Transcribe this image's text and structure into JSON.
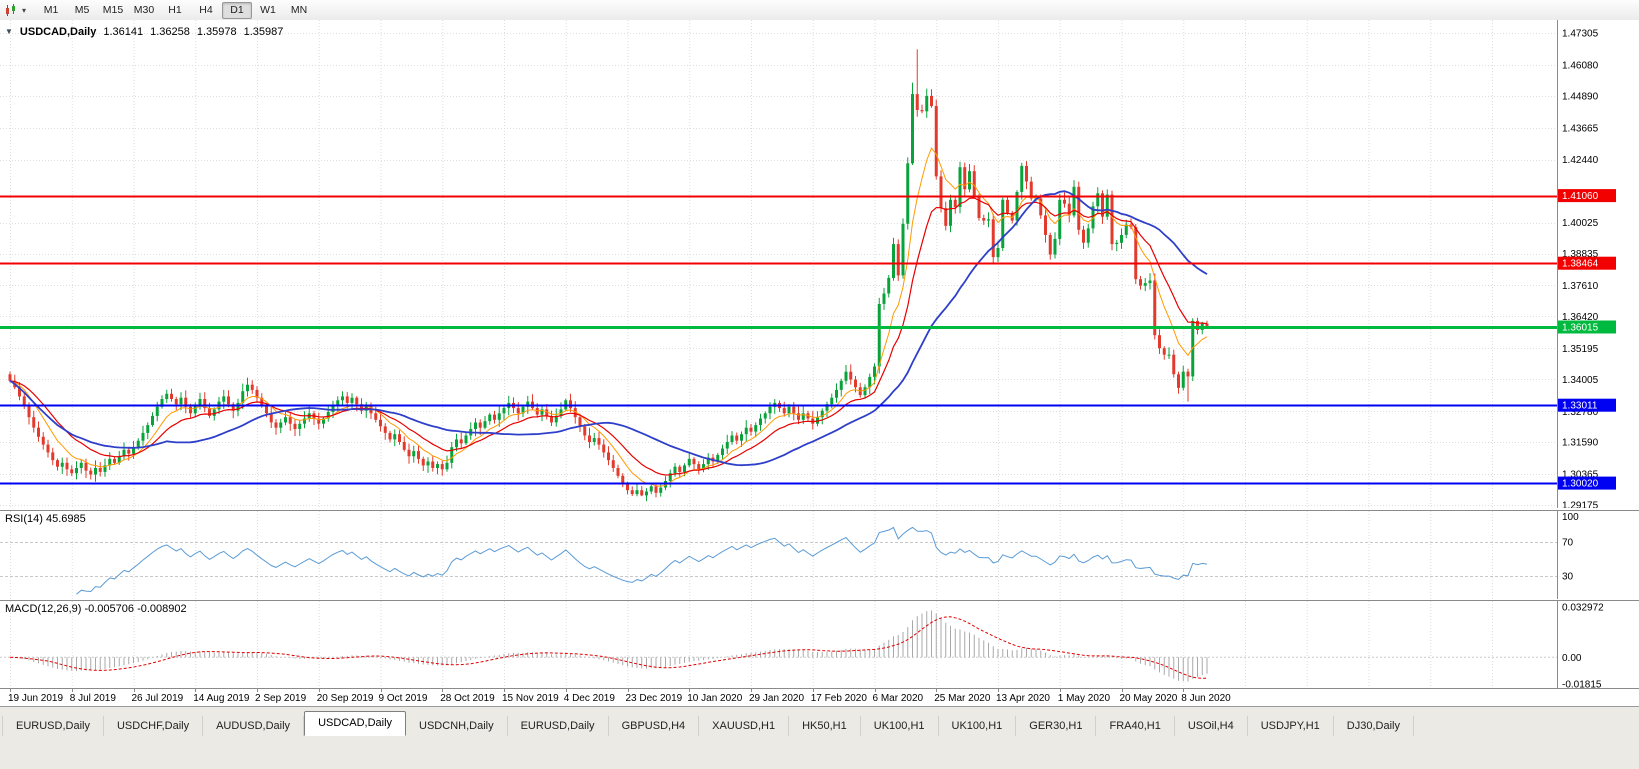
{
  "toolbar": {
    "timeframes": [
      {
        "label": "M1",
        "active": false
      },
      {
        "label": "M5",
        "active": false
      },
      {
        "label": "M15",
        "active": false
      },
      {
        "label": "M30",
        "active": false
      },
      {
        "label": "H1",
        "active": false
      },
      {
        "label": "H4",
        "active": false
      },
      {
        "label": "D1",
        "active": true
      },
      {
        "label": "W1",
        "active": false
      },
      {
        "label": "MN",
        "active": false
      }
    ]
  },
  "chart_title": {
    "symbol": "USDCAD,Daily",
    "open": "1.36141",
    "high": "1.36258",
    "low": "1.35978",
    "close": "1.35987"
  },
  "panes": {
    "rsi_label": "RSI(14) 45.6985",
    "macd_label": "MACD(12,26,9) -0.005706 -0.008902"
  },
  "chart_data": {
    "type": "candlestick",
    "symbol": "USDCAD",
    "timeframe": "Daily",
    "x_tick_labels": [
      "19 Jun 2019",
      "8 Jul 2019",
      "26 Jul 2019",
      "14 Aug 2019",
      "2 Sep 2019",
      "20 Sep 2019",
      "9 Oct 2019",
      "28 Oct 2019",
      "15 Nov 2019",
      "4 Dec 2019",
      "23 Dec 2019",
      "10 Jan 2020",
      "29 Jan 2020",
      "17 Feb 2020",
      "6 Mar 2020",
      "25 Mar 2020",
      "13 Apr 2020",
      "1 May 2020",
      "20 May 2020",
      "8 Jun 2020"
    ],
    "x_tick_indices": [
      0,
      13,
      26,
      39,
      52,
      65,
      78,
      91,
      104,
      117,
      130,
      143,
      156,
      169,
      182,
      195,
      208,
      221,
      234,
      247
    ],
    "price_ticks": [
      "1.47305",
      "1.46080",
      "1.44890",
      "1.43665",
      "1.42440",
      "1.40025",
      "1.38835",
      "1.37610",
      "1.36420",
      "1.35195",
      "1.34005",
      "1.32780",
      "1.31590",
      "1.30365",
      "1.29175"
    ],
    "y_top_price": 1.47305,
    "price_per_pixel": 0.000384,
    "first_open": 1.342,
    "closes": [
      1.3395,
      1.337,
      1.3335,
      1.33,
      1.3255,
      1.3215,
      1.318,
      1.315,
      1.312,
      1.309,
      1.3065,
      1.308,
      1.3055,
      1.304,
      1.306,
      1.308,
      1.305,
      1.3035,
      1.306,
      1.3045,
      1.307,
      1.3095,
      1.308,
      1.3105,
      1.313,
      1.3115,
      1.314,
      1.3165,
      1.3195,
      1.3225,
      1.326,
      1.3295,
      1.3325,
      1.3345,
      1.3325,
      1.3305,
      1.333,
      1.3295,
      1.327,
      1.33,
      1.3325,
      1.329,
      1.326,
      1.3285,
      1.3315,
      1.3335,
      1.3305,
      1.328,
      1.331,
      1.3355,
      1.338,
      1.336,
      1.333,
      1.33,
      1.327,
      1.3235,
      1.3215,
      1.3235,
      1.3255,
      1.323,
      1.321,
      1.323,
      1.325,
      1.327,
      1.325,
      1.323,
      1.325,
      1.3275,
      1.33,
      1.332,
      1.3335,
      1.331,
      1.333,
      1.3305,
      1.328,
      1.33,
      1.327,
      1.3245,
      1.322,
      1.3195,
      1.317,
      1.319,
      1.316,
      1.313,
      1.3105,
      1.3125,
      1.3095,
      1.307,
      1.3085,
      1.306,
      1.3075,
      1.3055,
      1.308,
      1.314,
      1.317,
      1.3155,
      1.3185,
      1.321,
      1.3235,
      1.3215,
      1.324,
      1.3265,
      1.3245,
      1.327,
      1.329,
      1.331,
      1.329,
      1.327,
      1.3295,
      1.3315,
      1.329,
      1.3265,
      1.3285,
      1.326,
      1.3235,
      1.326,
      1.3285,
      1.332,
      1.329,
      1.3255,
      1.322,
      1.3185,
      1.316,
      1.3175,
      1.315,
      1.312,
      1.309,
      1.306,
      1.303,
      1.3,
      1.2975,
      1.296,
      1.2975,
      1.2955,
      1.297,
      1.299,
      1.2965,
      1.2985,
      1.301,
      1.304,
      1.3065,
      1.3045,
      1.307,
      1.3095,
      1.3075,
      1.3055,
      1.3075,
      1.31,
      1.3085,
      1.311,
      1.3135,
      1.316,
      1.3185,
      1.3165,
      1.319,
      1.3215,
      1.32,
      1.3225,
      1.325,
      1.327,
      1.3295,
      1.331,
      1.329,
      1.327,
      1.3295,
      1.327,
      1.3245,
      1.327,
      1.325,
      1.323,
      1.3255,
      1.328,
      1.3305,
      1.333,
      1.336,
      1.3395,
      1.343,
      1.34,
      1.337,
      1.334,
      1.337,
      1.341,
      1.345,
      1.369,
      1.373,
      1.379,
      1.392,
      1.38,
      1.3998,
      1.423,
      1.4496,
      1.4435,
      1.443,
      1.4489,
      1.445,
      1.418,
      1.4058,
      1.399,
      1.409,
      1.4062,
      1.4215,
      1.413,
      1.42,
      1.4105,
      1.402,
      1.401,
      1.4015,
      1.387,
      1.3905,
      1.409,
      1.404,
      1.401,
      1.412,
      1.422,
      1.416,
      1.4095,
      1.4095,
      1.403,
      1.3955,
      1.388,
      1.394,
      1.409,
      1.4075,
      1.403,
      1.414,
      1.3975,
      1.3925,
      1.398,
      1.4065,
      1.4115,
      1.4025,
      1.411,
      1.392,
      1.3925,
      1.3955,
      1.3995,
      1.3985,
      1.3785,
      1.376,
      1.377,
      1.378,
      1.357,
      1.352,
      1.3495,
      1.3495,
      1.342,
      1.3368,
      1.343,
      1.3412,
      1.3625,
      1.359,
      1.36141,
      1.35987
    ],
    "wick_base": 0.0032,
    "wick_overrides": {
      "17": {
        "low": 1.3016
      },
      "133": {
        "low": 1.2952
      },
      "190": {
        "high": 1.454
      },
      "191": {
        "high": 1.4668
      },
      "248": {
        "low": 1.3315
      },
      "252": {
        "high": 1.36258,
        "low": 1.35978
      }
    },
    "hlines": [
      {
        "price": 1.4106,
        "label": "1.41060",
        "color": "#f20000",
        "width": 2
      },
      {
        "price": 1.38464,
        "label": "1.38464",
        "color": "#f20000",
        "width": 2
      },
      {
        "price": 1.36015,
        "label": "1.36015",
        "color": "#00ba3f",
        "width": 3
      },
      {
        "price": 1.33011,
        "label": "1.33011",
        "color": "#0000f2",
        "width": 2
      },
      {
        "price": 1.3002,
        "label": "1.30020",
        "color": "#0000f2",
        "width": 2
      }
    ],
    "moving_averages": [
      {
        "type": "ema",
        "period": 8,
        "color": "#ff9900",
        "width": 1
      },
      {
        "type": "ema",
        "period": 16,
        "color": "#e80000",
        "width": 1.2
      },
      {
        "type": "sma",
        "period": 34,
        "color": "#2e3fc9",
        "width": 1.8
      }
    ],
    "rsi": {
      "period": 14,
      "current": "45.6985",
      "levels": [
        "100",
        "70",
        "30"
      ],
      "dashed_levels": [
        70,
        30
      ]
    },
    "macd": {
      "fast": 12,
      "slow": 26,
      "signal_period": 9,
      "current_macd": "-0.005706",
      "current_signal": "-0.008902",
      "axis_labels": [
        "0.032972",
        "0.00",
        "-0.01815"
      ],
      "axis_max": 0.032972,
      "axis_min": -0.01815
    },
    "colors": {
      "up": "#0aa23a",
      "down": "#e23b2e",
      "grid": "#dedede",
      "axis_line": "#8a8a8a",
      "rsi_line": "#5b9bd5",
      "rsi_levels": "#c8c8c8",
      "macd_hist": "#a9a9a9",
      "macd_signal": "#e00000"
    }
  },
  "tabs": [
    {
      "label": "EURUSD,Daily",
      "active": false
    },
    {
      "label": "USDCHF,Daily",
      "active": false
    },
    {
      "label": "AUDUSD,Daily",
      "active": false
    },
    {
      "label": "USDCAD,Daily",
      "active": true
    },
    {
      "label": "USDCNH,Daily",
      "active": false
    },
    {
      "label": "EURUSD,Daily",
      "active": false
    },
    {
      "label": "GBPUSD,H4",
      "active": false
    },
    {
      "label": "XAUUSD,H1",
      "active": false
    },
    {
      "label": "HK50,H1",
      "active": false
    },
    {
      "label": "UK100,H1",
      "active": false
    },
    {
      "label": "UK100,H1",
      "active": false
    },
    {
      "label": "GER30,H1",
      "active": false
    },
    {
      "label": "FRA40,H1",
      "active": false
    },
    {
      "label": "USOil,H4",
      "active": false
    },
    {
      "label": "USDJPY,H1",
      "active": false
    },
    {
      "label": "DJ30,Daily",
      "active": false
    }
  ]
}
